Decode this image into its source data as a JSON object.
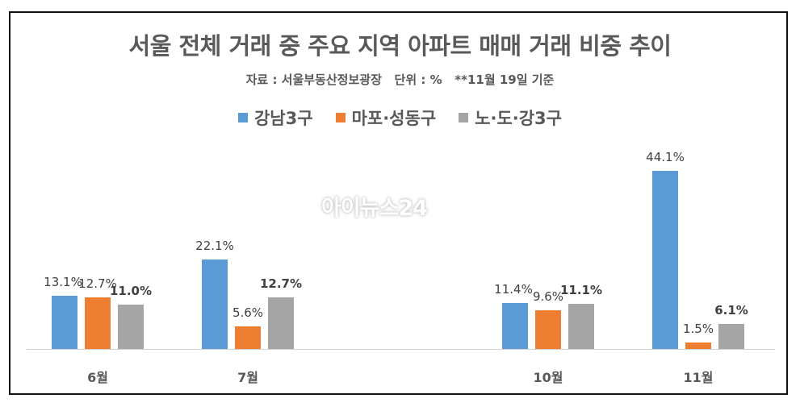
{
  "title": "서울 전체 거래 중 주요 지역 아파트 매매 거래 비중 추이",
  "subtitle": "자료 : 서울부동산정보광장   단위 : %   **11월 19일 기준",
  "watermark": "아이뉴스24",
  "colors": {
    "gangnam3gu": "#5B9BD5",
    "mapo_seongdong": "#ED7D31",
    "nodogang": "#A5A5A5"
  },
  "legend": [
    {
      "label": "강남3구",
      "color": "#5B9BD5"
    },
    {
      "label": "마포·성동구",
      "color": "#ED7D31"
    },
    {
      "label": "노·도·강3구",
      "color": "#A5A5A5"
    }
  ],
  "labels": {
    "g0": {
      "cat": "6월",
      "v0": "13.1%",
      "v1": "12.7%",
      "v2": "11.0%"
    },
    "g1": {
      "cat": "7월",
      "v0": "22.1%",
      "v1": "5.6%",
      "v2": "12.7%"
    },
    "g2": {
      "cat": "10월",
      "v0": "11.4%",
      "v1": "9.6%",
      "v2": "11.1%"
    },
    "g3": {
      "cat": "11월",
      "v0": "44.1%",
      "v1": "1.5%",
      "v2": "6.1%"
    }
  },
  "chart_data": {
    "type": "bar",
    "title": "서울 전체 거래 중 주요 지역 아파트 매매 거래 비중 추이",
    "subtitle": "자료 : 서울부동산정보광장   단위 : %   **11월 19일 기준",
    "categories": [
      "6월",
      "7월",
      "10월",
      "11월"
    ],
    "series": [
      {
        "name": "강남3구",
        "color": "#5B9BD5",
        "values": [
          13.1,
          22.1,
          11.4,
          44.1
        ]
      },
      {
        "name": "마포·성동구",
        "color": "#ED7D31",
        "values": [
          12.7,
          5.6,
          9.6,
          1.5
        ]
      },
      {
        "name": "노·도·강3구",
        "color": "#A5A5A5",
        "values": [
          11.0,
          12.7,
          11.1,
          6.1
        ]
      }
    ],
    "xlabel": "",
    "ylabel": "%",
    "ylim": [
      0,
      50
    ],
    "grid": false,
    "legend_position": "top",
    "data_labels": true
  }
}
